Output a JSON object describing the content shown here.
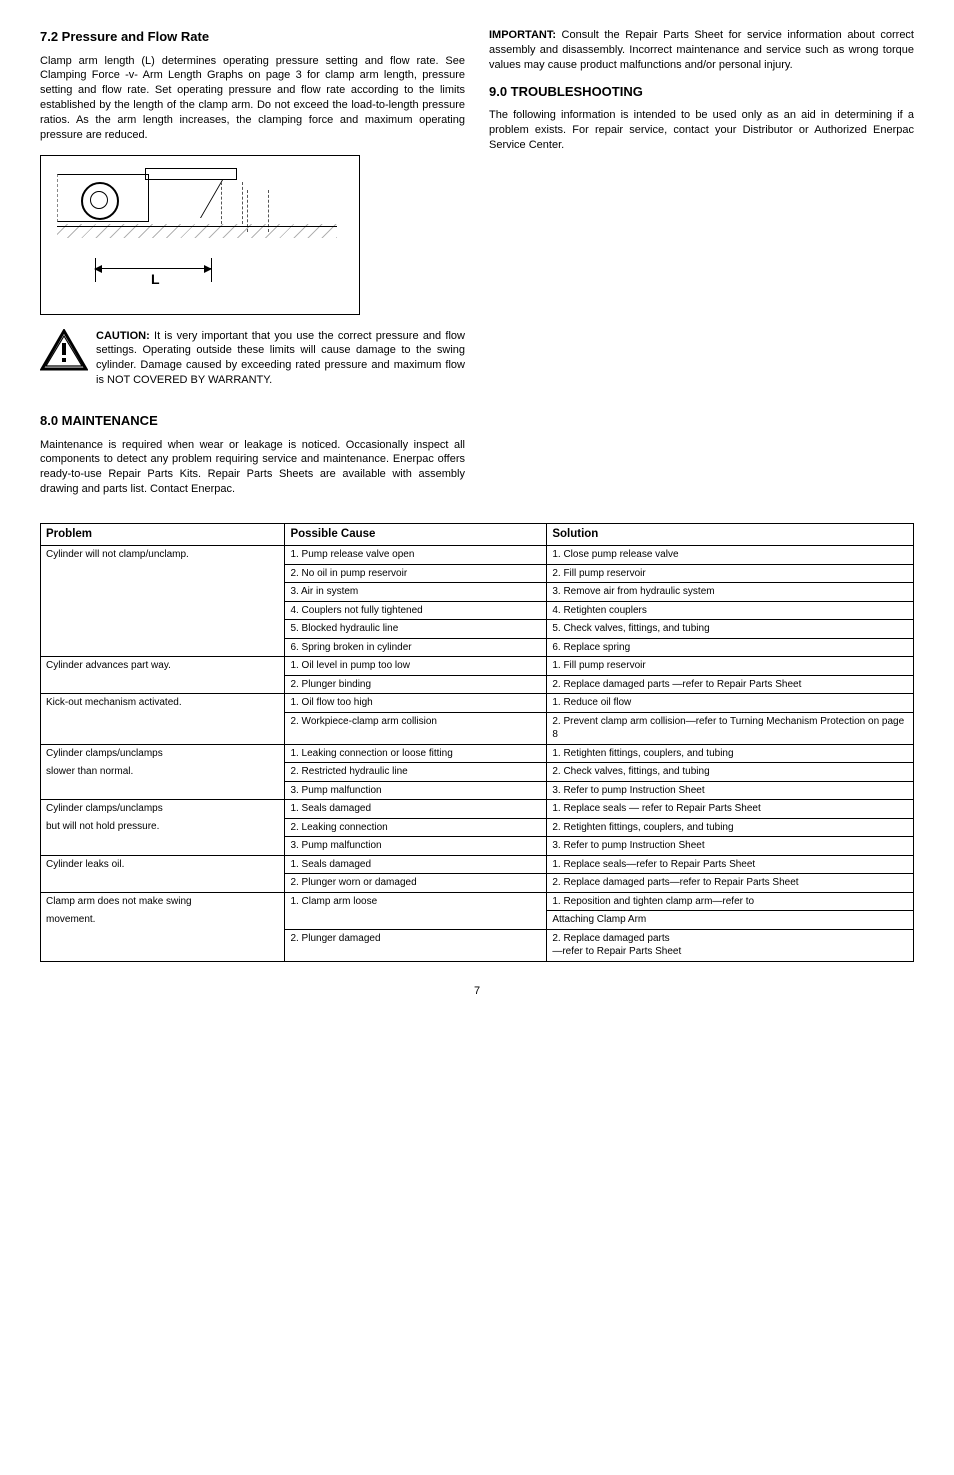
{
  "left": {
    "section72_heading": "7.2 Pressure and Flow Rate",
    "section72_body": "Clamp arm length (L) determines operating pressure setting and flow rate. See Clamping Force -v- Arm Length Graphs on page 3 for clamp arm length, pressure setting and flow rate. Set operating pressure and flow rate according to the limits established by the length of the clamp arm. Do not exceed the load-to-length pressure ratios. As the arm length increases, the clamping force and maximum operating pressure are reduced.",
    "diagram_label_L": "L",
    "caution_label": "CAUTION:",
    "caution_body": " It is very important that you use the correct pressure and flow settings. Operating outside these limits will cause damage to the swing cylinder. Damage caused by exceeding rated pressure and maximum flow is NOT COVERED BY WARRANTY.",
    "section8_heading": "8.0 MAINTENANCE",
    "section8_body": "Maintenance is required when wear or leakage is noticed. Occasionally inspect all components to detect any problem requiring service and maintenance. Enerpac offers ready-to-use Repair Parts Kits. Repair Parts Sheets are available with assembly drawing and parts list. Contact Enerpac."
  },
  "right": {
    "important_label": "IMPORTANT:",
    "important_body": " Consult the Repair Parts Sheet for service information about correct assembly and disassembly. Incorrect maintenance and service such as wrong torque values may cause product malfunctions and/or personal injury.",
    "section9_heading": "9.0 TROUBLESHOOTING",
    "section9_body": "The following information is intended to be used only as an aid in determining if a problem exists. For repair service, contact your Distributor or Authorized Enerpac Service Center."
  },
  "table": {
    "headers": {
      "problem": "Problem",
      "cause": "Possible Cause",
      "solution": "Solution"
    },
    "rows": [
      {
        "p": "Cylinder will not clamp/unclamp.",
        "c": "1. Pump release valve open",
        "s": "1. Close pump release valve",
        "pborder": "nb"
      },
      {
        "p": "",
        "c": "2. No oil in pump reservoir",
        "s": "2. Fill pump reservoir",
        "pborder": "m"
      },
      {
        "p": "",
        "c": "3. Air in system",
        "s": "3. Remove air from hydraulic system",
        "pborder": "m"
      },
      {
        "p": "",
        "c": "4. Couplers not fully tightened",
        "s": "4. Retighten couplers",
        "pborder": "m"
      },
      {
        "p": "",
        "c": "5. Blocked hydraulic line",
        "s": "5. Check valves, fittings, and tubing",
        "pborder": "m"
      },
      {
        "p": "",
        "c": "6. Spring broken in cylinder",
        "s": "6. Replace spring",
        "pborder": "nt"
      },
      {
        "p": "Cylinder advances part way.",
        "c": "1. Oil level in pump too low",
        "s": "1. Fill pump reservoir",
        "pborder": "nb"
      },
      {
        "p": "",
        "c": "2. Plunger binding",
        "s": "2. Replace damaged parts —refer to Repair Parts Sheet",
        "pborder": "nt"
      },
      {
        "p": "Kick-out mechanism activated.",
        "c": "1. Oil flow too high",
        "s": "1. Reduce oil flow",
        "pborder": "nb"
      },
      {
        "p": "",
        "c": "2. Workpiece-clamp arm collision",
        "s": "2. Prevent clamp arm collision—refer to Turning Mechanism Protection on page 8",
        "pborder": "nt"
      },
      {
        "p": "Cylinder clamps/unclamps",
        "c": "1. Leaking connection or loose fitting",
        "s": "1. Retighten fittings, couplers, and tubing",
        "pborder": "nb"
      },
      {
        "p": "slower than normal.",
        "c": "2. Restricted hydraulic line",
        "s": "2. Check valves, fittings, and tubing",
        "pborder": "m"
      },
      {
        "p": "",
        "c": "3. Pump malfunction",
        "s": "3. Refer to pump Instruction Sheet",
        "pborder": "nt"
      },
      {
        "p": "Cylinder clamps/unclamps",
        "c": "1. Seals damaged",
        "s": "1. Replace seals — refer to Repair Parts Sheet",
        "pborder": "nb"
      },
      {
        "p": "but will not hold pressure.",
        "c": "2. Leaking connection",
        "s": "2. Retighten fittings, couplers, and tubing",
        "pborder": "m"
      },
      {
        "p": "",
        "c": "3. Pump malfunction",
        "s": "3. Refer to pump Instruction Sheet",
        "pborder": "nt"
      },
      {
        "p": "Cylinder leaks oil.",
        "c": "1. Seals damaged",
        "s": "1. Replace seals—refer to Repair Parts Sheet",
        "pborder": "nb"
      },
      {
        "p": "",
        "c": "2. Plunger worn or damaged",
        "s": "2. Replace damaged parts—refer to Repair Parts Sheet",
        "pborder": "nt"
      },
      {
        "p": "Clamp arm does not make swing",
        "c": "1. Clamp arm loose",
        "s": "1. Reposition and tighten clamp arm—refer to",
        "pborder": "nb",
        "cborder": "nb"
      },
      {
        "p": "movement.",
        "c": "",
        "s": "    Attaching Clamp Arm",
        "pborder": "m",
        "cborder": "nt"
      },
      {
        "p": "",
        "c": "2. Plunger damaged",
        "s": "2. Replace damaged parts\n—refer to Repair Parts Sheet",
        "pborder": "nt"
      }
    ]
  },
  "pagenum": "7"
}
